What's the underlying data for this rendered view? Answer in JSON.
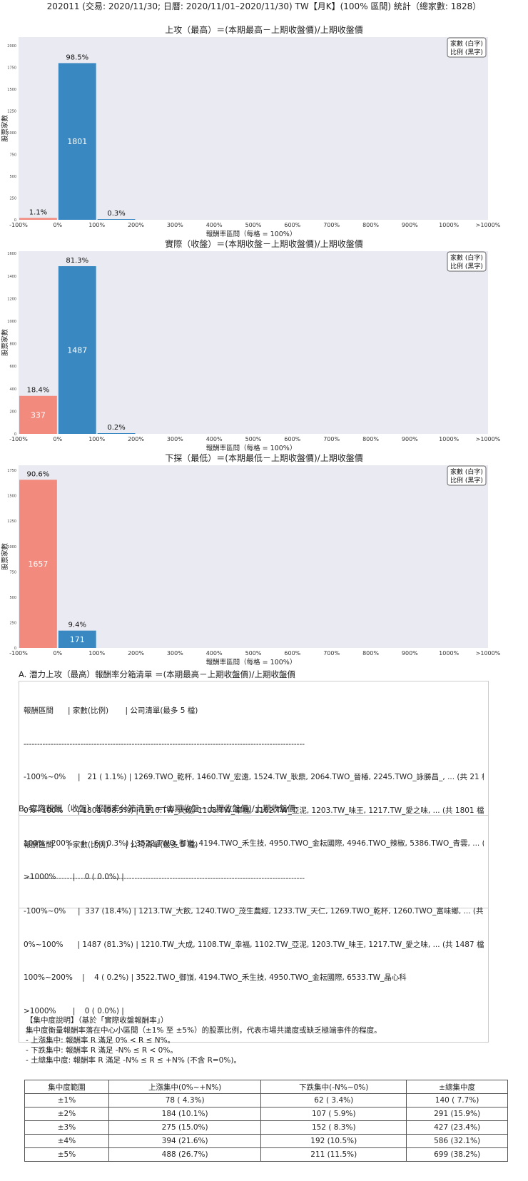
{
  "header": {
    "title": "202011 (交易: 2020/11/30; 日曆: 2020/11/01–2020/11/30) TW【月K】(100% 區間) 統計（總家數: 1828）"
  },
  "colors": {
    "positive": "#3a88c1",
    "negative": "#f28b7e",
    "plot_bg": "#eaeaf2"
  },
  "chart_data": [
    {
      "type": "bar",
      "title": "上攻（最高）＝(本期最高－上期收盤價)/上期收盤價",
      "xlabel": "報酬率區間（每格 = 100%）",
      "ylabel": "股票家數",
      "categories": [
        "-100%~0%",
        "0%~100%",
        "100%~200%"
      ],
      "values": [
        21,
        1801,
        6
      ],
      "percent_labels": [
        "1.1%",
        "98.5%",
        "0.3%"
      ],
      "count_labels": [
        "",
        "1801",
        ""
      ],
      "xticks": [
        "-100%",
        "0%",
        "100%",
        "200%",
        "300%",
        "400%",
        "500%",
        "600%",
        "700%",
        "800%",
        "900%",
        "1000%",
        ">1000%"
      ],
      "yticks": [
        0,
        250,
        500,
        750,
        1000,
        1250,
        1500,
        1750,
        2000
      ],
      "ylim": [
        0,
        2100
      ],
      "legend": [
        "家數 (白字)",
        "比例 (黑字)"
      ],
      "legend_position": "top-right"
    },
    {
      "type": "bar",
      "title": "實際（收盤）＝(本期收盤－上期收盤價)/上期收盤價",
      "xlabel": "報酬率區間（每格 = 100%）",
      "ylabel": "股票家數",
      "categories": [
        "-100%~0%",
        "0%~100%",
        "100%~200%"
      ],
      "values": [
        337,
        1487,
        4
      ],
      "percent_labels": [
        "18.4%",
        "81.3%",
        "0.2%"
      ],
      "count_labels": [
        "337",
        "1487",
        ""
      ],
      "xticks": [
        "-100%",
        "0%",
        "100%",
        "200%",
        "300%",
        "400%",
        "500%",
        "600%",
        "700%",
        "800%",
        "900%",
        "1000%",
        ">1000%"
      ],
      "yticks": [
        0,
        200,
        400,
        600,
        800,
        1000,
        1200,
        1400,
        1600
      ],
      "ylim": [
        0,
        1620
      ],
      "legend": [
        "家數 (白字)",
        "比例 (黑字)"
      ],
      "legend_position": "top-right"
    },
    {
      "type": "bar",
      "title": "下探（最低）＝(本期最低－上期收盤價)/上期收盤價",
      "xlabel": "報酬率區間（每格 = 100%）",
      "ylabel": "股票家數",
      "categories": [
        "-100%~0%",
        "0%~100%"
      ],
      "values": [
        1657,
        171
      ],
      "percent_labels": [
        "90.6%",
        "9.4%"
      ],
      "count_labels": [
        "1657",
        "171"
      ],
      "xticks": [
        "-100%",
        "0%",
        "100%",
        "200%",
        "300%",
        "400%",
        "500%",
        "600%",
        "700%",
        "800%",
        "900%",
        "1000%",
        ">1000%"
      ],
      "yticks": [
        0,
        250,
        500,
        750,
        1000,
        1250,
        1500,
        1750
      ],
      "ylim": [
        0,
        1800
      ],
      "legend": [
        "家數 (白字)",
        "比例 (黑字)"
      ],
      "legend_position": "top-right"
    }
  ],
  "list_a": {
    "heading": "A. 潛力上攻（最高）報酬率分箱清單 ＝(本期最高－上期收盤價)/上期收盤價",
    "lines": [
      "報酬區間      | 家數(比例)       | 公司清單(最多 5 檔)",
      "--------------------------------------------------------------------------------------------------------",
      "-100%~0%     |   21 ( 1.1%) | 1269.TWO_乾杯, 1460.TW_宏遠, 1524.TW_耿鼎, 2064.TWO_晉椿, 2245.TWO_詠勝昌_, ... (共 21 檔)",
      "0%~100%      | 1801 (98.5%) | 1210.TW_大成, 1108.TW_幸福, 1102.TW_亞泥, 1203.TW_味王, 1217.TW_愛之味, ... (共 1801 檔)",
      "100%~200%    |    6 ( 0.3%) | 3522.TWO_御嵿, 4194.TWO_禾生技, 4950.TWO_金耘國際, 4946.TWO_辣椒, 5386.TWO_青雲, ... (共 6 檔)",
      ">1000%       |    0 ( 0.0%) |"
    ]
  },
  "list_b": {
    "heading": "B. 實際報酬（收盤）報酬率分箱清單 ＝(本期收盤－上期收盤價)/上期收盤價",
    "lines": [
      "報酬區間      | 家數(比例)       | 公司清單(最多 5 檔)",
      "--------------------------------------------------------------------------------------------------------",
      "-100%~0%     |  337 (18.4%) | 1213.TW_大飲, 1240.TWO_茂生農經, 1233.TW_天仁, 1269.TWO_乾杯, 1260.TWO_富味鄉, ... (共 337 檔)",
      "0%~100%      | 1487 (81.3%) | 1210.TW_大成, 1108.TW_幸福, 1102.TW_亞泥, 1203.TW_味王, 1217.TW_愛之味, ... (共 1487 檔)",
      "100%~200%    |    4 ( 0.2%) | 3522.TWO_御嵿, 4194.TWO_禾生技, 4950.TWO_金耘國際, 6533.TW_晶心科",
      ">1000%       |    0 ( 0.0%) |"
    ]
  },
  "concentration": {
    "lines": [
      "【集中度說明】（基於「實際收盤報酬率」）",
      "集中度衡量報酬率落在中心小區間（±1% 至 ±5%）的股票比例，代表市場共識度或缺乏極端事件的程度。",
      " - 上漲集中: 報酬率 R 滿足 0% < R ≤ N%。",
      " - 下跌集中: 報酬率 R 滿足 -N% ≤ R < 0%。",
      " - 土總集中度: 報酬率 R 滿足 -N% ≤ R ≤ +N% (不含 R=0%)。"
    ],
    "table": {
      "headers": [
        "集中度範圍",
        "上漲集中(0%~+N%)",
        "下跌集中(-N%~0%)",
        "±總集中度"
      ],
      "rows": [
        [
          "±1%",
          "78 ( 4.3%)",
          "62 ( 3.4%)",
          "140 ( 7.7%)"
        ],
        [
          "±2%",
          "184 (10.1%)",
          "107 ( 5.9%)",
          "291 (15.9%)"
        ],
        [
          "±3%",
          "275 (15.0%)",
          "152 ( 8.3%)",
          "427 (23.4%)"
        ],
        [
          "±4%",
          "394 (21.6%)",
          "192 (10.5%)",
          "586 (32.1%)"
        ],
        [
          "±5%",
          "488 (26.7%)",
          "211 (11.5%)",
          "699 (38.2%)"
        ]
      ]
    }
  }
}
